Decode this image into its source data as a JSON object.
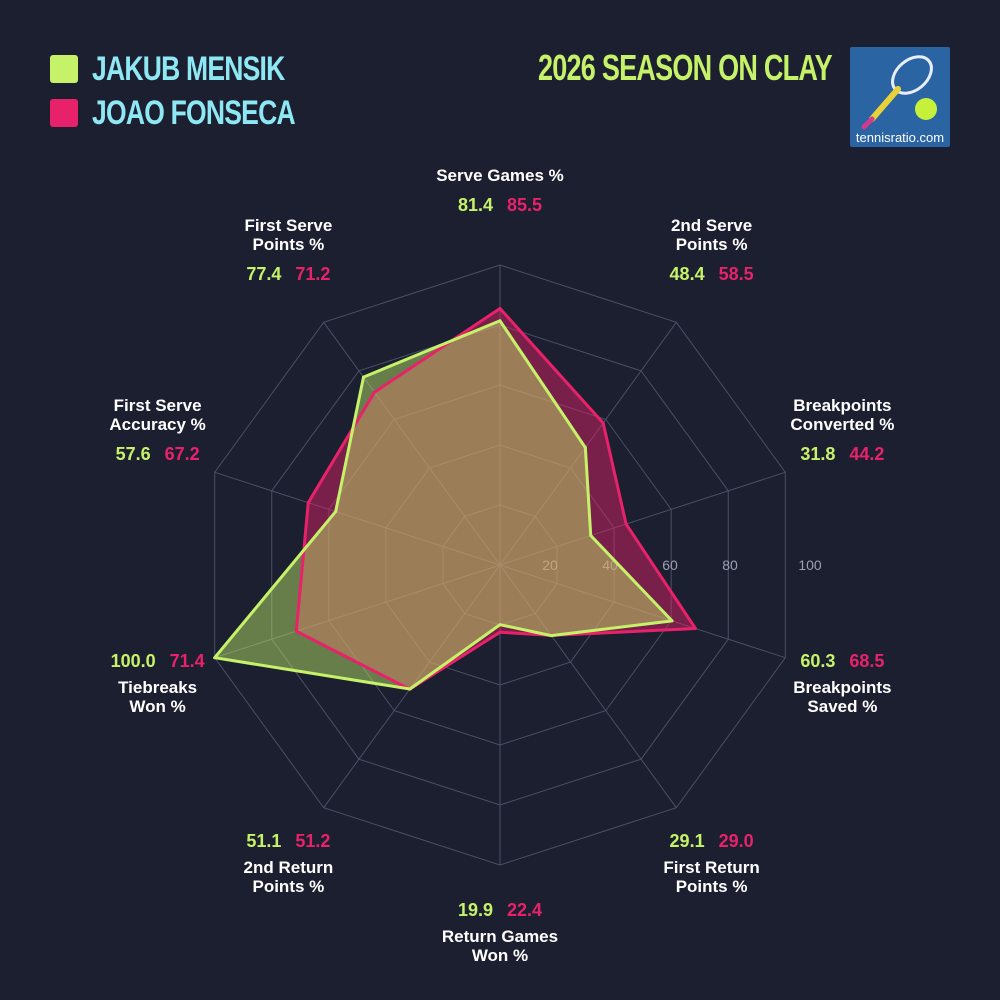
{
  "title": "2026 SEASON ON CLAY",
  "logo": {
    "text": "tennisratio.com",
    "icon": "tennis-racket-ball-icon"
  },
  "colors": {
    "background": "#1c1f30",
    "player1": "#c6f26a",
    "player2": "#e8226a",
    "legend_text": "#8ee8f3"
  },
  "chart_data": {
    "type": "radar",
    "title": "2026 SEASON ON CLAY",
    "rmax": 100,
    "ticks": [
      20,
      40,
      60,
      80,
      100
    ],
    "legend": "top-left",
    "categories": [
      "Serve Games %",
      "2nd Serve Points %",
      "Breakpoints Converted %",
      "Breakpoints Saved %",
      "First Return Points %",
      "Return Games Won %",
      "2nd Return Points %",
      "Tiebreaks Won %",
      "First Serve Accuracy %",
      "First Serve Points %"
    ],
    "series": [
      {
        "name": "JAKUB MENSIK",
        "values": [
          81.4,
          48.4,
          31.8,
          60.3,
          29.1,
          19.9,
          51.1,
          100.0,
          57.6,
          77.4
        ]
      },
      {
        "name": "JOAO FONSECA",
        "values": [
          85.5,
          58.5,
          44.2,
          68.5,
          29.0,
          22.4,
          51.2,
          71.4,
          67.2,
          71.2
        ]
      }
    ]
  },
  "axes": [
    {
      "label": "Serve Games %",
      "v1": "81.4",
      "v2": "85.5"
    },
    {
      "label": "2nd Serve\nPoints %",
      "v1": "48.4",
      "v2": "58.5"
    },
    {
      "label": "Breakpoints\nConverted %",
      "v1": "31.8",
      "v2": "44.2"
    },
    {
      "label": "Breakpoints\nSaved %",
      "v1": "60.3",
      "v2": "68.5"
    },
    {
      "label": "First Return\nPoints %",
      "v1": "29.1",
      "v2": "29.0"
    },
    {
      "label": "Return Games\nWon %",
      "v1": "19.9",
      "v2": "22.4"
    },
    {
      "label": "2nd Return\nPoints %",
      "v1": "51.1",
      "v2": "51.2"
    },
    {
      "label": "Tiebreaks\nWon %",
      "v1": "100.0",
      "v2": "71.4"
    },
    {
      "label": "First Serve\nAccuracy %",
      "v1": "57.6",
      "v2": "67.2"
    },
    {
      "label": "First Serve\nPoints %",
      "v1": "77.4",
      "v2": "71.2"
    }
  ]
}
